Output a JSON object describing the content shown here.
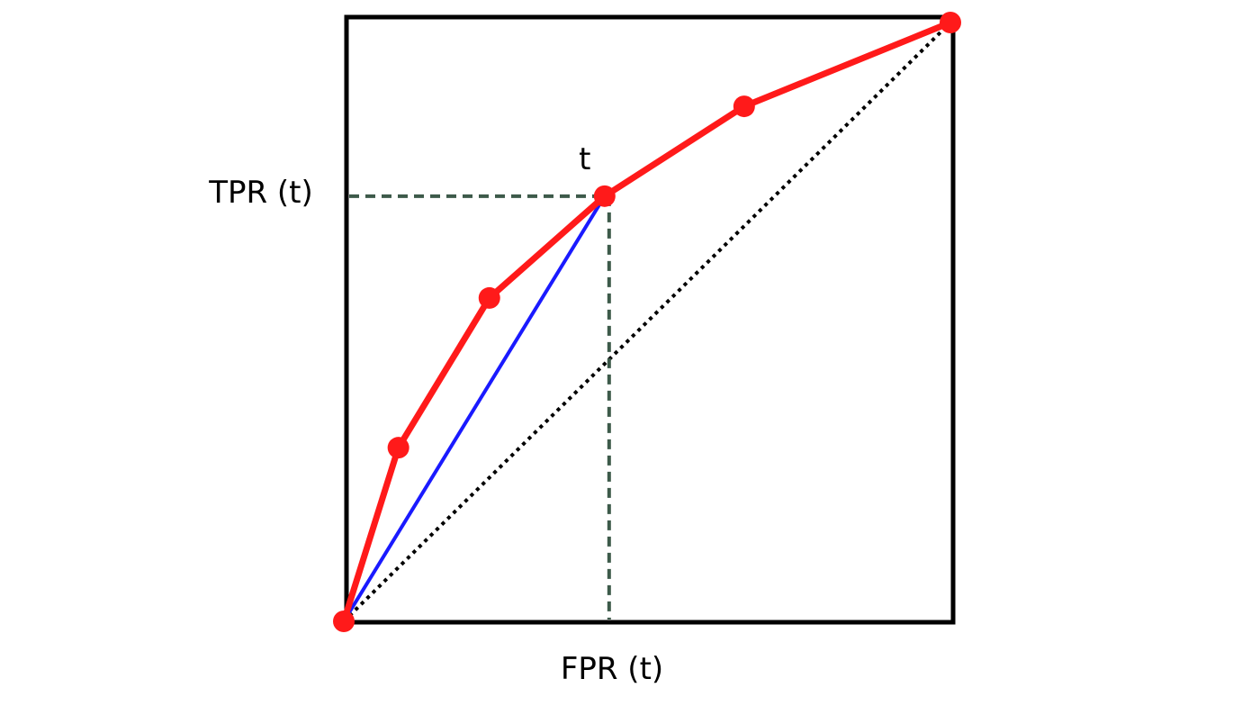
{
  "chart_data": {
    "type": "line",
    "title": "",
    "xlabel": "",
    "ylabel": "",
    "xlim": [
      0,
      1
    ],
    "ylim": [
      0,
      1
    ],
    "grid": false,
    "series": [
      {
        "x": [
          0.0,
          0.09,
          0.24,
          0.43,
          0.66,
          1.0
        ],
        "y": [
          0.0,
          0.29,
          0.54,
          0.71,
          0.86,
          1.0
        ],
        "color": "#ff1a1a",
        "markers": true
      }
    ],
    "diagonal": {
      "x": [
        0,
        1
      ],
      "y": [
        0,
        1
      ],
      "color": "#000000",
      "style": "dotted"
    },
    "chord": {
      "x": [
        0,
        0.43
      ],
      "y": [
        0,
        0.71
      ],
      "color": "#1a1aff"
    },
    "threshold_point": {
      "x": 0.43,
      "y": 0.71,
      "label": "t"
    },
    "annotations": {
      "tpr_label": "TPR (t)",
      "fpr_label": "FPR (t)"
    },
    "guide_color": "#3d5a4a"
  }
}
